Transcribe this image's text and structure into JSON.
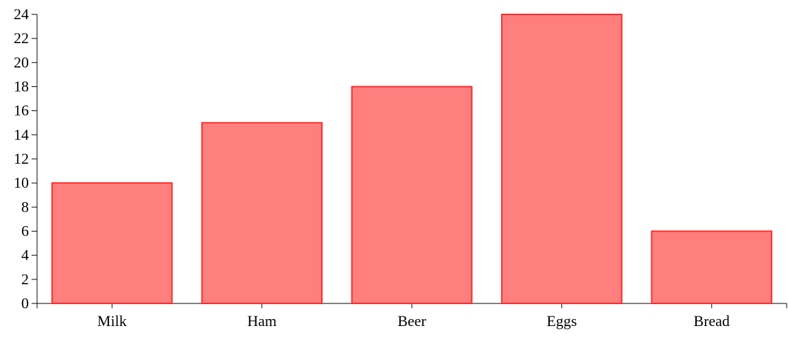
{
  "chart_data": {
    "type": "bar",
    "categories": [
      "Milk",
      "Ham",
      "Beer",
      "Eggs",
      "Bread"
    ],
    "values": [
      10,
      15,
      18,
      24,
      6
    ],
    "title": "",
    "xlabel": "",
    "ylabel": "",
    "ylim": [
      0,
      24
    ],
    "yticks": [
      0,
      2,
      4,
      6,
      8,
      10,
      12,
      14,
      16,
      18,
      20,
      22,
      24
    ],
    "grid": false,
    "legend": "none",
    "bar_fill_color": "#ff7f7f",
    "bar_stroke_color": "#ff2a2a"
  }
}
